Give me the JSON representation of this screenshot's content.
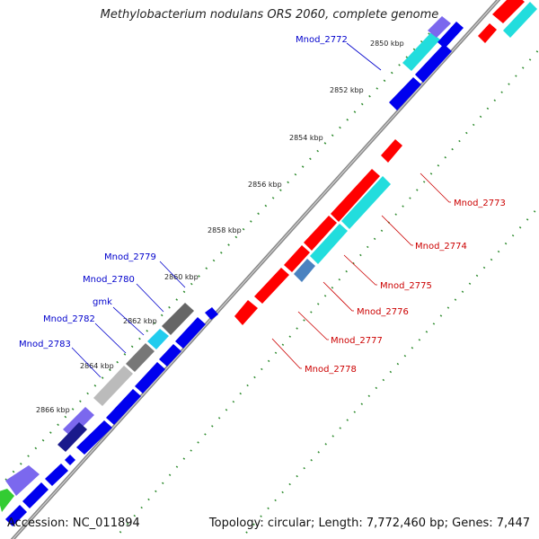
{
  "title": "Methylobacterium nodulans ORS 2060, complete genome",
  "footer": {
    "accession_label": "Accession:",
    "accession": "NC_011894",
    "info": "Topology: circular; Length: 7,772,460 bp; Genes: 7,447"
  },
  "colors": {
    "backbone": "#8c8c8c",
    "tick_dot": "#2e8b2e",
    "red_gene": "#ff0000",
    "cyan_gene": "#22dddd",
    "blue_gene": "#0000ee",
    "purple_gene": "#7b68ee",
    "gray_gene": "#777777",
    "steel_gene": "#4a82c0",
    "left_label": "#0000cc",
    "right_label": "#cc0000"
  },
  "ticks": [
    "2850 kbp",
    "2852 kbp",
    "2854 kbp",
    "2856 kbp",
    "2858 kbp",
    "2860 kbp",
    "2862 kbp",
    "2864 kbp",
    "2866 kbp"
  ],
  "left_labels": [
    "Mnod_2772",
    "Mnod_2779",
    "Mnod_2780",
    "gmk",
    "Mnod_2782",
    "Mnod_2783"
  ],
  "right_labels": [
    "Mnod_2773",
    "Mnod_2774",
    "Mnod_2775",
    "Mnod_2776",
    "Mnod_2777",
    "Mnod_2778"
  ]
}
